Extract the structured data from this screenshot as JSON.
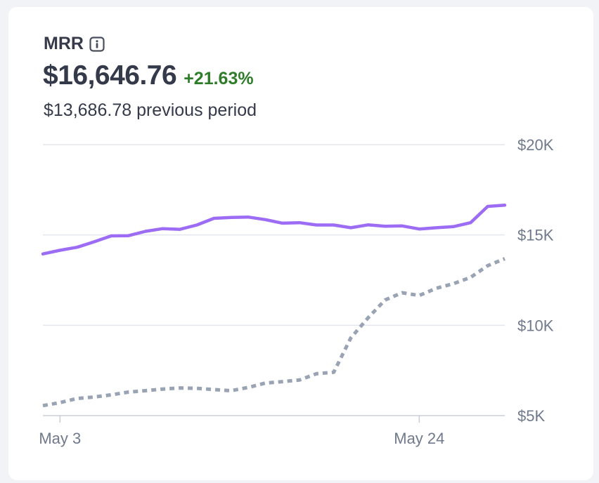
{
  "metric": {
    "title": "MRR",
    "value": "$16,646.76",
    "change": "+21.63%",
    "previous": "$13,686.78 previous period"
  },
  "colors": {
    "current": "#9c6cf5",
    "previous": "#99a3b3",
    "positive": "#2f7d2b",
    "grid": "#e3e6ee"
  },
  "chart_data": {
    "type": "line",
    "xlabel": "",
    "ylabel": "",
    "x_tick_labels": [
      "May 3",
      "May 24"
    ],
    "x_tick_index": [
      1,
      22
    ],
    "y_ticks": [
      5000,
      10000,
      15000,
      20000
    ],
    "y_tick_labels": [
      "$5K",
      "$10K",
      "$15K",
      "$20K"
    ],
    "ylim": [
      5000,
      20000
    ],
    "grid": true,
    "series": [
      {
        "style": "solid",
        "color": "#9c6cf5",
        "values": [
          13950,
          14150,
          14320,
          14620,
          14950,
          14960,
          15200,
          15350,
          15310,
          15550,
          15920,
          15970,
          15990,
          15850,
          15650,
          15680,
          15550,
          15550,
          15400,
          15560,
          15480,
          15500,
          15330,
          15400,
          15460,
          15680,
          16580,
          16647
        ]
      },
      {
        "style": "dotted",
        "color": "#99a3b3",
        "values": [
          5550,
          5720,
          5950,
          6030,
          6150,
          6300,
          6380,
          6470,
          6530,
          6510,
          6440,
          6380,
          6560,
          6800,
          6880,
          6970,
          7320,
          7400,
          9300,
          10400,
          11400,
          11800,
          11650,
          12050,
          12300,
          12650,
          13300,
          13687
        ]
      }
    ]
  }
}
